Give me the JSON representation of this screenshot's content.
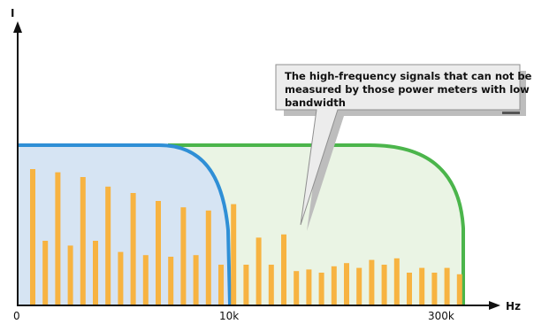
{
  "axes": {
    "y_label": "I",
    "x_label": "Hz",
    "x_ticks": [
      "0",
      "10k",
      "300k"
    ]
  },
  "callout": {
    "lines": [
      "The high-frequency signals that can not be",
      "measured by those power meters with low",
      "bandwidth"
    ]
  },
  "colors": {
    "low_bandwidth_fill": "#d6e4f3",
    "low_bandwidth_stroke": "#2f8fd6",
    "high_bandwidth_fill": "#eaf4e4",
    "high_bandwidth_stroke": "#4bb54b",
    "bar": "#f7b341",
    "axis": "#111111",
    "callout_fill": "#ececec"
  },
  "chart_data": {
    "type": "bar",
    "description_units": "relative amplitude (0 = axis, 1 = bandwidth plateau)",
    "x_categories": [
      "0",
      "10k",
      "300k"
    ],
    "bars": [
      0.85,
      0.4,
      0.83,
      0.37,
      0.8,
      0.4,
      0.74,
      0.33,
      0.7,
      0.31,
      0.65,
      0.3,
      0.61,
      0.31,
      0.59,
      0.25,
      0.63,
      0.25,
      0.42,
      0.25,
      0.44,
      0.21,
      0.22,
      0.2,
      0.24,
      0.26,
      0.23,
      0.28,
      0.25,
      0.29,
      0.2,
      0.23,
      0.2,
      0.23,
      0.19
    ]
  }
}
